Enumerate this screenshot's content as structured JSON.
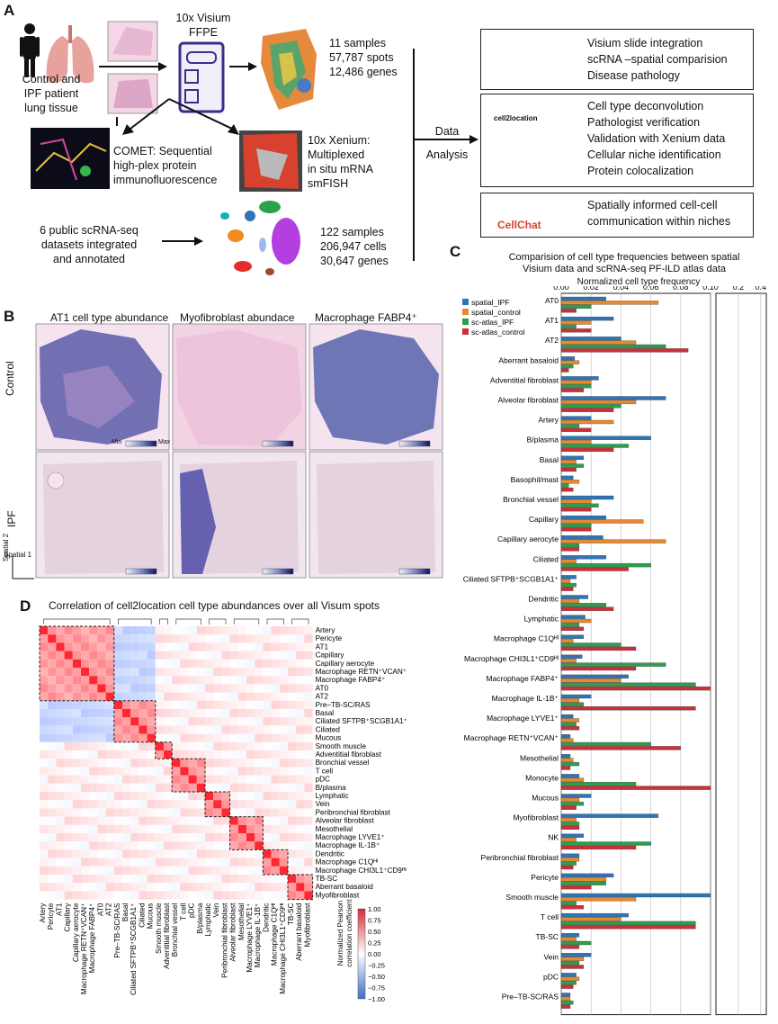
{
  "panelA": {
    "letter": "A",
    "tissue_label": [
      "Control and",
      "IPF patient",
      "lung tissue"
    ],
    "visium_label": [
      "10x Visium",
      "FFPE"
    ],
    "visium_stats": [
      "11 samples",
      "57,787 spots",
      "12,486 genes"
    ],
    "comet_label": [
      "COMET: Sequential",
      "high-plex protein",
      "immunofluorescence"
    ],
    "xenium_label": [
      "10x Xenium:",
      "Multiplexed",
      "in situ mRNA",
      "smFISH"
    ],
    "scrna_label": [
      "6 public scRNA-seq",
      "datasets integrated",
      "and annotated"
    ],
    "scrna_stats": [
      "122 samples",
      "206,947 cells",
      "30,647 genes"
    ],
    "data_analysis": [
      "Data",
      "Analysis"
    ],
    "box1": [
      "Visium slide integration",
      "scRNA –spatial comparision",
      "Disease pathology"
    ],
    "box2_icon": "cell2location",
    "box2": [
      "Cell type deconvolution",
      "Pathologist verification",
      "Validation with Xenium data",
      "Cellular niche identification",
      "Protein colocalization"
    ],
    "box3_logo": "CellChat",
    "box3": [
      "Spatially informed cell-cell",
      "communication within niches"
    ]
  },
  "panelB": {
    "letter": "B",
    "columns": [
      "AT1 cell type abundance",
      "Myofibroblast abundace",
      "Macrophage FABP4⁺"
    ],
    "rows": [
      "Control",
      "IPF"
    ],
    "cbar_min": "Min",
    "cbar_max": "Max",
    "axis_y": "Spatial 2",
    "axis_x": "Spatial 1"
  },
  "panelC": {
    "letter": "C",
    "title": [
      "Comparision of cell type frequencies between spatial",
      "Visium data and scRNA-seq PF-ILD atlas data"
    ],
    "xlabel": "Normalized cell type frequency",
    "ticks_main": [
      "0.00",
      "0.02",
      "0.04",
      "0.06",
      "0.08",
      "0.10"
    ],
    "ticks_inset": [
      "0.2",
      "0.4"
    ],
    "legend": [
      "spatial_IPF",
      "spatial_control",
      "sc-atlas_IPF",
      "sc-atlas_control"
    ],
    "colors": {
      "spatial_IPF": "#2f74b5",
      "spatial_control": "#e8892e",
      "sc_atlas_IPF": "#2e9d4f",
      "sc_atlas_control": "#c9303a"
    }
  },
  "panelD": {
    "letter": "D",
    "title": "Correlation of cell2location cell type abundances over all Visum spots",
    "cbar_title": [
      "Normalized Pearson",
      "correlation coefficient"
    ],
    "cbar_ticks": [
      "1.00",
      "0.75",
      "0.50",
      "0.25",
      "0.00",
      "−0.25",
      "−0.50",
      "−0.75",
      "−1.00"
    ]
  },
  "chart_data": {
    "type": "bar",
    "title": "Comparision of cell type frequencies between spatial Visium data and scRNA-seq PF-ILD atlas data",
    "xlabel": "Normalized cell type frequency",
    "xlim": [
      0,
      0.1
    ],
    "categories": [
      "AT0",
      "AT1",
      "AT2",
      "Aberrant basaloid",
      "Adventitial fibroblast",
      "Alveolar fibroblast",
      "Artery",
      "B/plasma",
      "Basal",
      "Basophil/mast",
      "Bronchial vessel",
      "Capillary",
      "Capillary aerocyte",
      "Ciliated",
      "Ciliated SFTPB⁺SCGB1A1⁺",
      "Dendritic",
      "Lymphatic",
      "Macrophage C1Qᴴᴵ",
      "Macrophage CHI3L1⁺CD9ᴴᴵ",
      "Macrophage FABP4⁺",
      "Macrophage IL-1B⁺",
      "Macrophage LYVE1⁺",
      "Macrophage RETN⁺VCAN⁺",
      "Mesothelial",
      "Monocyte",
      "Mucous",
      "Myofibroblast",
      "NK",
      "Peribronchial fibroblast",
      "Pericyte",
      "Smooth muscle",
      "T cell",
      "TB-SC",
      "Vein",
      "pDC",
      "Pre–TB-SC/RAS"
    ],
    "series": [
      {
        "name": "spatial_IPF",
        "values": [
          0.03,
          0.035,
          0.04,
          0.009,
          0.025,
          0.07,
          0.02,
          0.06,
          0.015,
          0.008,
          0.035,
          0.03,
          0.028,
          0.03,
          0.01,
          0.018,
          0.016,
          0.015,
          0.014,
          0.045,
          0.02,
          0.008,
          0.006,
          0.006,
          0.012,
          0.02,
          0.065,
          0.015,
          0.012,
          0.035,
          0.1,
          0.045,
          0.012,
          0.02,
          0.01,
          0.006
        ]
      },
      {
        "name": "spatial_control",
        "values": [
          0.065,
          0.02,
          0.05,
          0.012,
          0.02,
          0.05,
          0.035,
          0.02,
          0.01,
          0.012,
          0.02,
          0.055,
          0.07,
          0.01,
          0.006,
          0.012,
          0.02,
          0.008,
          0.01,
          0.04,
          0.012,
          0.012,
          0.008,
          0.008,
          0.015,
          0.012,
          0.01,
          0.01,
          0.012,
          0.03,
          0.05,
          0.04,
          0.01,
          0.015,
          0.012,
          0.006
        ]
      },
      {
        "name": "sc-atlas_IPF",
        "values": [
          0.02,
          0.01,
          0.07,
          0.008,
          0.02,
          0.04,
          0.012,
          0.045,
          0.015,
          0.005,
          0.025,
          0.02,
          0.012,
          0.06,
          0.01,
          0.03,
          0.012,
          0.04,
          0.07,
          0.09,
          0.015,
          0.01,
          0.06,
          0.012,
          0.05,
          0.015,
          0.012,
          0.06,
          0.01,
          0.03,
          0.01,
          0.09,
          0.02,
          0.012,
          0.01,
          0.008
        ]
      },
      {
        "name": "sc-atlas_control",
        "values": [
          0.01,
          0.02,
          0.085,
          0.005,
          0.015,
          0.035,
          0.02,
          0.035,
          0.01,
          0.008,
          0.02,
          0.02,
          0.012,
          0.045,
          0.008,
          0.035,
          0.015,
          0.05,
          0.05,
          0.1,
          0.09,
          0.012,
          0.08,
          0.006,
          0.1,
          0.01,
          0.012,
          0.05,
          0.008,
          0.02,
          0.015,
          0.09,
          0.012,
          0.015,
          0.008,
          0.006
        ]
      }
    ]
  },
  "heatmap_labels": [
    "Artery",
    "Pericyte",
    "AT1",
    "Capillary",
    "Capillary aerocyte",
    "Macrophage RETN⁺VCAN⁺",
    "Macrophage FABP4⁺",
    "AT0",
    "AT2",
    "Pre–TB-SC/RAS",
    "Basal",
    "Ciliated SFTPB⁺SCGB1A1⁺",
    "Ciliated",
    "Mucous",
    "Smooth muscle",
    "Adventitial fibroblast",
    "Bronchial vessel",
    "T cell",
    "pDC",
    "B/plasma",
    "Lymphatic",
    "Vein",
    "Peribronchial fibroblast",
    "Alveolar fibroblast",
    "Mesothelial",
    "Macrophage LYVE1⁺",
    "Macrophage IL-1B⁺",
    "Dendritic",
    "Macrophage C1Qᴴᴵ",
    "Macrophage CHI3L1⁺CD9ᴴᴵ",
    "TB-SC",
    "Aberrant basaloid",
    "Myofibroblast"
  ],
  "heatmap_clusters": [
    [
      0,
      8
    ],
    [
      9,
      13
    ],
    [
      14,
      15
    ],
    [
      16,
      19
    ],
    [
      20,
      22
    ],
    [
      23,
      26
    ],
    [
      27,
      29
    ],
    [
      30,
      32
    ]
  ]
}
